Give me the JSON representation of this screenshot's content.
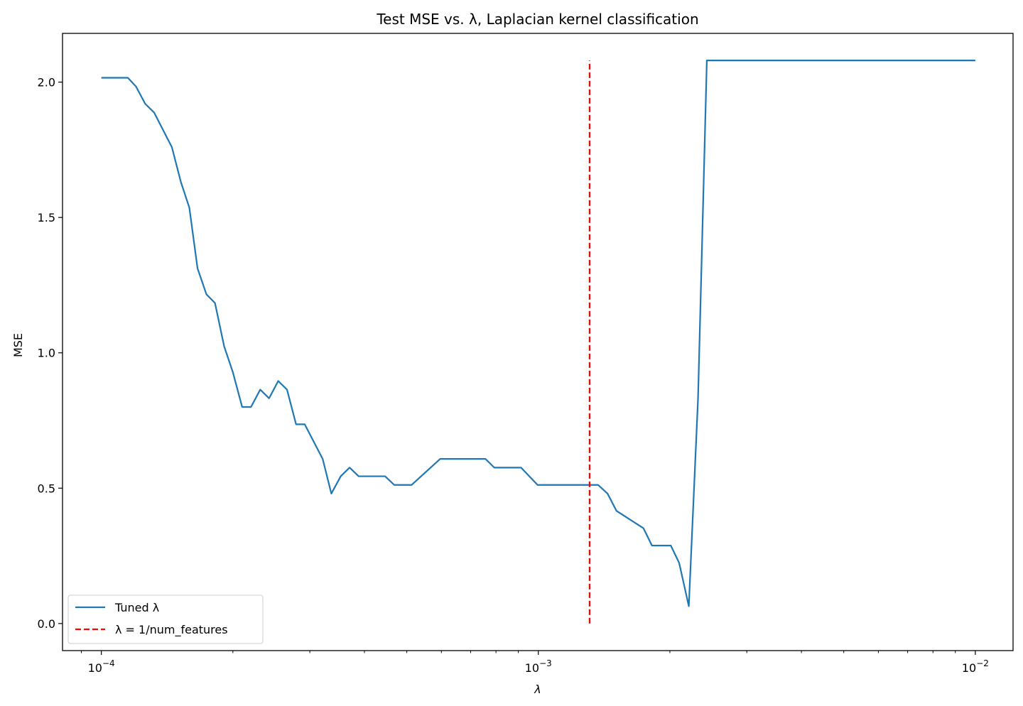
{
  "chart_data": {
    "type": "line",
    "title": "Test MSE vs. λ, Laplacian kernel classification",
    "xlabel": "λ",
    "ylabel": "MSE",
    "xscale": "log",
    "xlim": [
      8.15e-05,
      0.0122
    ],
    "ylim": [
      -0.1,
      2.18
    ],
    "grid": false,
    "legend_position": "lower-left",
    "x_ticks": [
      {
        "value": 0.0001,
        "base": "10",
        "exp": "−4"
      },
      {
        "value": 0.001,
        "base": "10",
        "exp": "−3"
      },
      {
        "value": 0.01,
        "base": "10",
        "exp": "−2"
      }
    ],
    "y_ticks": [
      {
        "value": 0.0,
        "label": "0.0"
      },
      {
        "value": 0.5,
        "label": "0.5"
      },
      {
        "value": 1.0,
        "label": "1.0"
      },
      {
        "value": 1.5,
        "label": "1.5"
      },
      {
        "value": 2.0,
        "label": "2.0"
      }
    ],
    "series": [
      {
        "name": "Tuned λ",
        "color": "#1f77b4",
        "style": "solid",
        "x": [
          0.0001,
          0.000105,
          0.00011,
          0.000115,
          0.00012,
          0.000126,
          0.000132,
          0.000145,
          0.000152,
          0.000159,
          0.000166,
          0.000174,
          0.000182,
          0.000191,
          0.0002,
          0.00021,
          0.00022,
          0.000231,
          0.000242,
          0.000254,
          0.000266,
          0.000279,
          0.000292,
          0.000321,
          0.000336,
          0.000353,
          0.00037,
          0.000388,
          0.000446,
          0.000468,
          0.000513,
          0.000596,
          0.000757,
          0.000793,
          0.000913,
          0.000996,
          0.00137,
          0.00144,
          0.00151,
          0.00174,
          0.00182,
          0.00201,
          0.0021,
          0.00221,
          0.00232,
          0.00243,
          0.0027,
          0.0035,
          0.005,
          0.007,
          0.01
        ],
        "y": [
          2.016,
          2.016,
          2.016,
          2.016,
          1.984,
          1.92,
          1.888,
          1.76,
          1.632,
          1.536,
          1.312,
          1.216,
          1.184,
          1.024,
          0.928,
          0.8,
          0.8,
          0.864,
          0.832,
          0.896,
          0.864,
          0.736,
          0.736,
          0.608,
          0.48,
          0.544,
          0.576,
          0.544,
          0.544,
          0.512,
          0.512,
          0.608,
          0.608,
          0.576,
          0.576,
          0.512,
          0.512,
          0.48,
          0.416,
          0.352,
          0.288,
          0.288,
          0.224,
          0.064,
          0.832,
          2.08,
          2.08,
          2.08,
          2.08,
          2.08,
          2.08
        ]
      },
      {
        "name": "λ = 1/num_features",
        "color": "#ff0000",
        "style": "dashed",
        "x": [
          0.00131,
          0.00131
        ],
        "y": [
          0.0,
          2.08
        ]
      }
    ]
  }
}
